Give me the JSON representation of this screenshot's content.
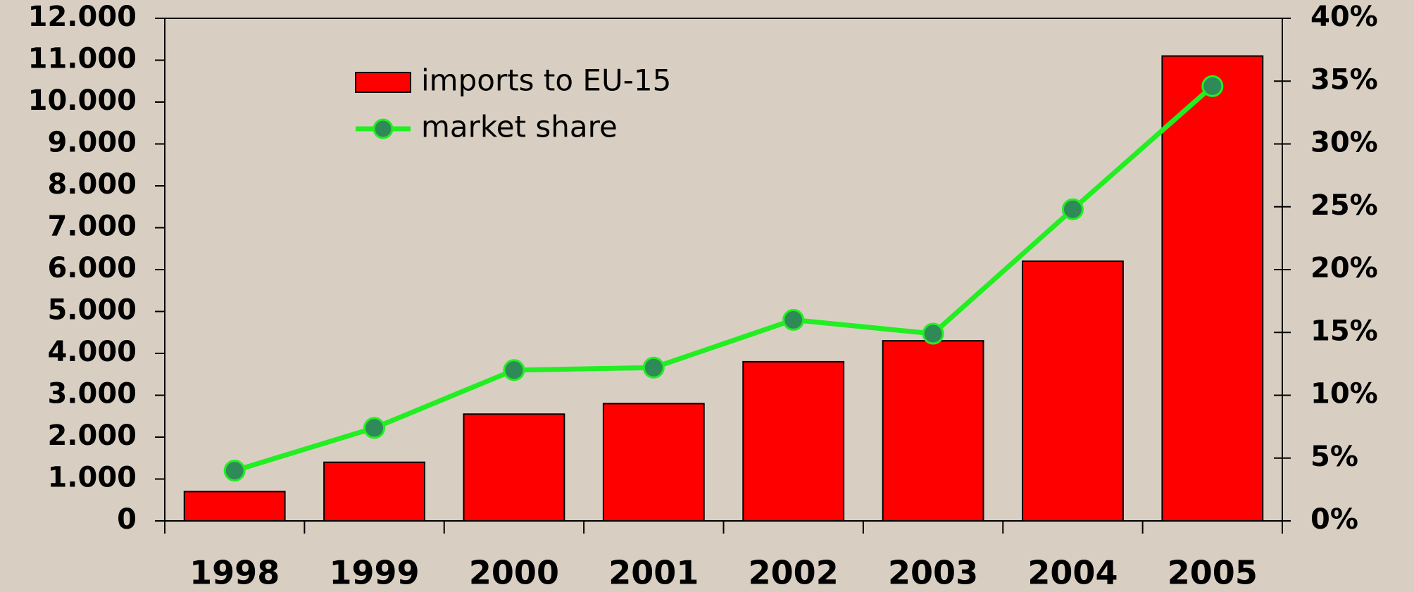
{
  "chart_data": {
    "type": "bar_line",
    "categories": [
      "1998",
      "1999",
      "2000",
      "2001",
      "2002",
      "2003",
      "2004",
      "2005"
    ],
    "series": [
      {
        "name": "imports to EU-15",
        "type": "bar",
        "color": "#ff0000",
        "values": [
          700,
          1400,
          2550,
          2800,
          3800,
          4300,
          6200,
          11100
        ]
      },
      {
        "name": "market share",
        "type": "line",
        "color": "#22ee22",
        "marker_color": "#2e8b57",
        "axis": "y2",
        "values": [
          4.0,
          7.4,
          12.0,
          12.2,
          16.0,
          14.9,
          24.8,
          34.6
        ]
      }
    ],
    "ylim": [
      0,
      12000
    ],
    "yticks": [
      0,
      {
        "value": 1000,
        "label": "1.000"
      },
      {
        "value": 2000,
        "label": "2.000"
      },
      {
        "value": 3000,
        "label": "3.000"
      },
      {
        "value": 4000,
        "label": "4.000"
      },
      {
        "value": 5000,
        "label": "5.000"
      },
      {
        "value": 6000,
        "label": "6.000"
      },
      {
        "value": 7000,
        "label": "7.000"
      },
      {
        "value": 8000,
        "label": "8.000"
      },
      {
        "value": 9000,
        "label": "9.000"
      },
      {
        "value": 10000,
        "label": "10.000"
      },
      {
        "value": 11000,
        "label": "11.000"
      },
      {
        "value": 12000,
        "label": "12.000"
      }
    ],
    "y2lim": [
      0,
      40
    ],
    "y2ticks": [
      {
        "value": 0,
        "label": "0%"
      },
      {
        "value": 5,
        "label": "5%"
      },
      {
        "value": 10,
        "label": "10%"
      },
      {
        "value": 15,
        "label": "15%"
      },
      {
        "value": 20,
        "label": "20%"
      },
      {
        "value": 25,
        "label": "25%"
      },
      {
        "value": 30,
        "label": "30%"
      },
      {
        "value": 35,
        "label": "35%"
      },
      {
        "value": 40,
        "label": "40%"
      }
    ],
    "legend": "upper left"
  }
}
